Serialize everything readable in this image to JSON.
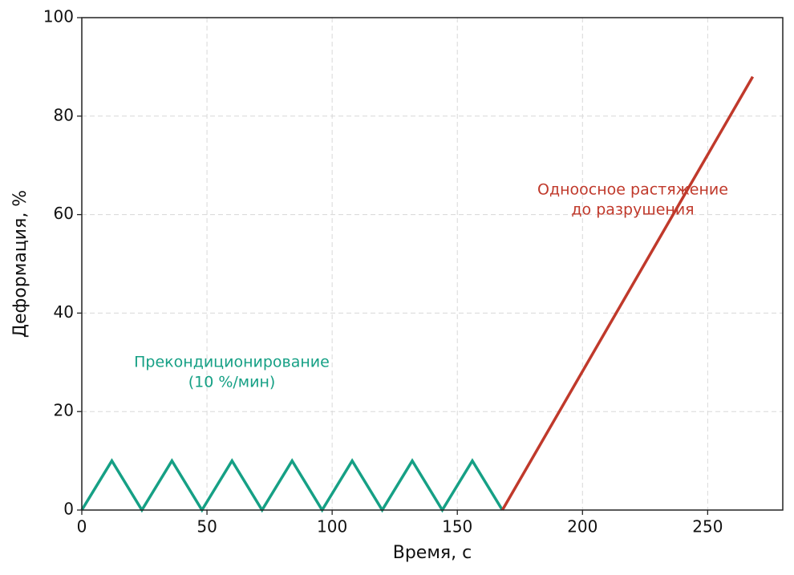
{
  "chart_data": {
    "type": "line",
    "xlabel": "Время, с",
    "ylabel": "Деформация, %",
    "xlim": [
      0,
      280
    ],
    "ylim": [
      0,
      100
    ],
    "xticks": [
      0,
      50,
      100,
      150,
      200,
      250
    ],
    "yticks": [
      0,
      20,
      40,
      60,
      80,
      100
    ],
    "grid": true,
    "series": [
      {
        "color": "#16a085",
        "x": [
          0,
          12,
          24,
          36,
          48,
          60,
          72,
          84,
          96,
          108,
          120,
          132,
          144,
          156,
          168
        ],
        "values": [
          0,
          10,
          0,
          10,
          0,
          10,
          0,
          10,
          0,
          10,
          0,
          10,
          0,
          10,
          0
        ]
      },
      {
        "color": "#c0392b",
        "x": [
          168,
          268
        ],
        "values": [
          0,
          88
        ]
      }
    ],
    "annotations": [
      {
        "lines": [
          "Прекондиционирование",
          "(10 %/мин)"
        ],
        "color": "#16a085"
      },
      {
        "lines": [
          "Одноосное растяжение",
          "до разрушения"
        ],
        "color": "#c0392b"
      }
    ]
  }
}
